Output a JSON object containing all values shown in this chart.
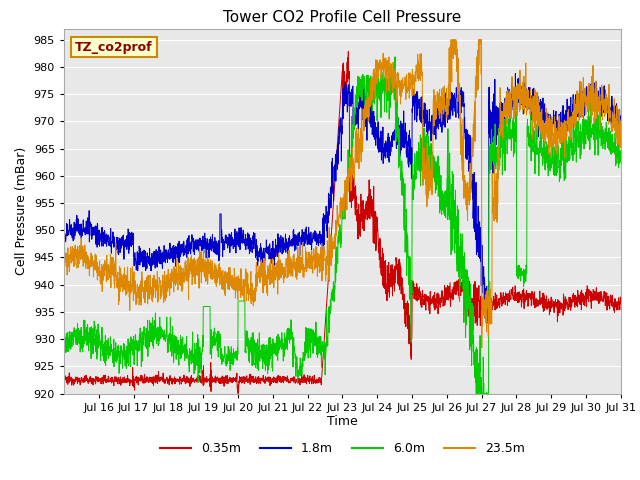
{
  "title": "Tower CO2 Profile Cell Pressure",
  "xlabel": "Time",
  "ylabel": "Cell Pressure (mBar)",
  "ylim": [
    920,
    987
  ],
  "yticks": [
    920,
    925,
    930,
    935,
    940,
    945,
    950,
    955,
    960,
    965,
    970,
    975,
    980,
    985
  ],
  "xtick_labels": [
    "Jul 16",
    "Jul 17",
    "Jul 18",
    "Jul 19",
    "Jul 20",
    "Jul 21",
    "Jul 22",
    "Jul 23",
    "Jul 24",
    "Jul 25",
    "Jul 26",
    "Jul 27",
    "Jul 28",
    "Jul 29",
    "Jul 30",
    "Jul 31"
  ],
  "series": [
    {
      "label": "0.35m",
      "color": "#cc0000"
    },
    {
      "label": "1.8m",
      "color": "#0000cc"
    },
    {
      "label": "6.0m",
      "color": "#00cc00"
    },
    {
      "label": "23.5m",
      "color": "#dd8800"
    }
  ],
  "legend_label": "TZ_co2prof",
  "legend_bg": "#ffffcc",
  "legend_border": "#cc8800",
  "bg_color": "#e8e8e8",
  "grid_color": "#ffffff",
  "title_fontsize": 11,
  "axis_label_fontsize": 9,
  "tick_fontsize": 8
}
